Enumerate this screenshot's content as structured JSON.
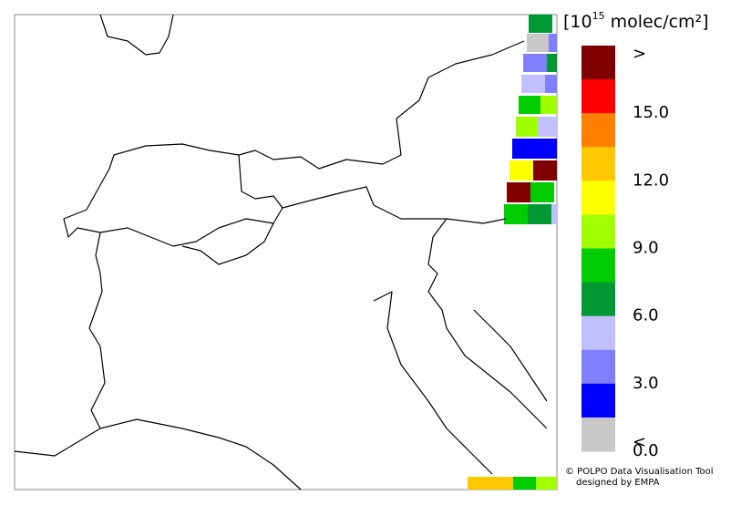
{
  "legend": {
    "title": {
      "prefix": "[10",
      "exponent": "15",
      "suffix": " molec/cm²]"
    },
    "colors": [
      "#800000",
      "#ff0000",
      "#ff8000",
      "#ffc800",
      "#ffff00",
      "#a0ff00",
      "#00cc00",
      "#009933",
      "#c0c0ff",
      "#8080ff",
      "#0000ff",
      "#c8c8c8"
    ],
    "labels": [
      ">",
      "15.0",
      "12.0",
      "9.0",
      "6.0",
      "3.0",
      "0.0",
      "<"
    ]
  },
  "credit": {
    "line1": "© POLPO Data Visualisation Tool",
    "line2": "designed by EMPA"
  }
}
